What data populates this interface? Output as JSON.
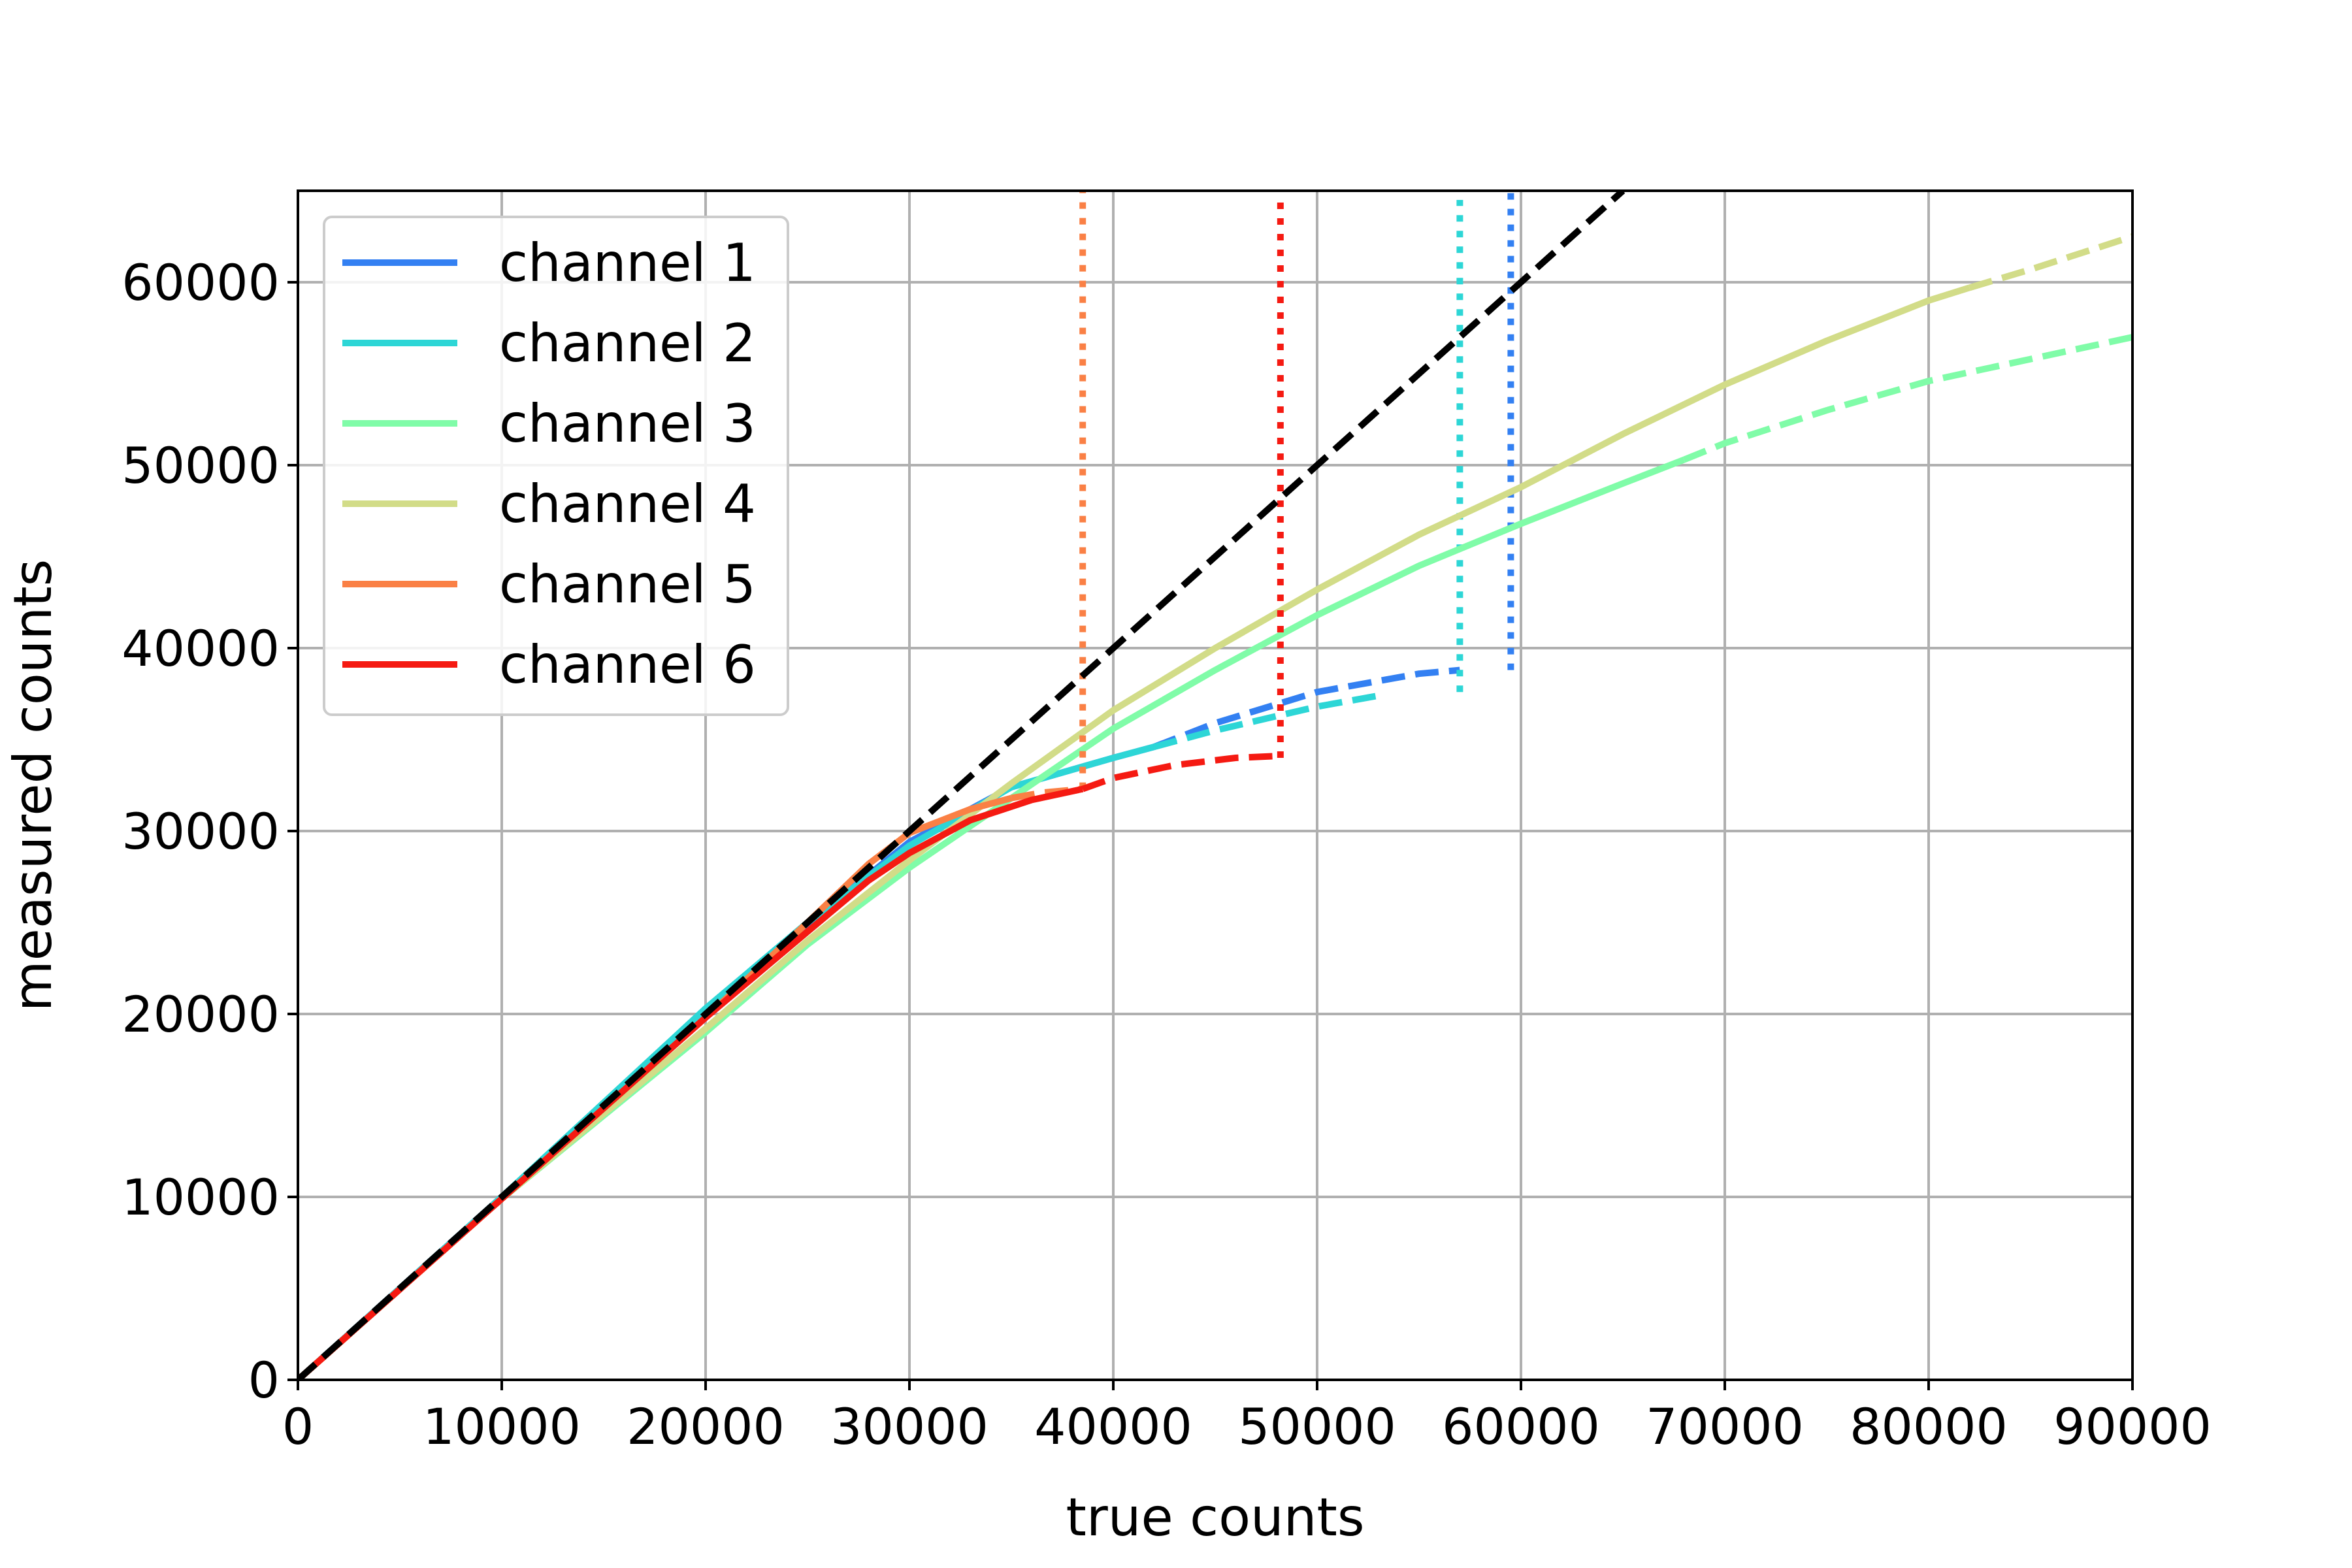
{
  "chart_data": {
    "type": "line",
    "xlabel": "true counts",
    "ylabel": "measured counts",
    "xlim": [
      0,
      90000
    ],
    "ylim": [
      0,
      65000
    ],
    "xticks": [
      0,
      10000,
      20000,
      30000,
      40000,
      50000,
      60000,
      70000,
      80000,
      90000
    ],
    "yticks": [
      0,
      10000,
      20000,
      30000,
      40000,
      50000,
      60000
    ],
    "xtick_labels": [
      "0",
      "10000",
      "20000",
      "30000",
      "40000",
      "50000",
      "60000",
      "70000",
      "80000",
      "90000"
    ],
    "ytick_labels": [
      "0",
      "10000",
      "20000",
      "30000",
      "40000",
      "50000",
      "60000"
    ],
    "grid": true,
    "legend_position": "top-left",
    "identity_line": {
      "style": "dashed",
      "color": "#000000",
      "x": [
        0,
        65000
      ],
      "y": [
        0,
        65000
      ]
    },
    "series": [
      {
        "name": "channel 1",
        "color": "#3380f2",
        "solid": {
          "x": [
            0,
            10000,
            20000,
            25000,
            30000,
            35000,
            40000,
            42000
          ],
          "y": [
            0,
            10000,
            20000,
            24900,
            29400,
            32400,
            34000,
            34600
          ]
        },
        "dashed": {
          "x": [
            42000,
            45000,
            50000,
            55000,
            57000
          ],
          "y": [
            34600,
            35900,
            37600,
            38600,
            38800
          ]
        },
        "limit_x": 59500,
        "limit_y_range": [
          38800,
          65000
        ]
      },
      {
        "name": "channel 2",
        "color": "#2dd6d6",
        "solid": {
          "x": [
            0,
            10000,
            20000,
            25000,
            30000,
            35000,
            40000,
            42000
          ],
          "y": [
            0,
            10000,
            20300,
            25000,
            29200,
            32400,
            34000,
            34600
          ]
        },
        "dashed": {
          "x": [
            42000,
            45000,
            50000,
            53000
          ],
          "y": [
            34600,
            35500,
            36800,
            37400
          ]
        },
        "limit_x": 57000,
        "limit_y_range": [
          37600,
          64500
        ]
      },
      {
        "name": "channel 3",
        "color": "#80fca8",
        "solid": {
          "x": [
            0,
            10000,
            20000,
            25000,
            30000,
            35000,
            40000,
            45000,
            50000,
            55000,
            60000,
            65000,
            68000
          ],
          "y": [
            0,
            9900,
            19000,
            23800,
            28000,
            31800,
            35600,
            38800,
            41800,
            44500,
            46800,
            49000,
            50300
          ]
        },
        "dashed": {
          "x": [
            68000,
            70000,
            75000,
            80000,
            85000,
            90000
          ],
          "y": [
            50300,
            51200,
            53000,
            54600,
            55800,
            57000
          ]
        }
      },
      {
        "name": "channel 4",
        "color": "#d2dc88",
        "solid": {
          "x": [
            0,
            10000,
            20000,
            25000,
            30000,
            35000,
            40000,
            45000,
            50000,
            55000,
            60000,
            65000,
            70000,
            75000,
            80000,
            82000
          ],
          "y": [
            0,
            9900,
            19200,
            24000,
            28400,
            32600,
            36600,
            40000,
            43200,
            46200,
            48800,
            51700,
            54400,
            56800,
            59000,
            59700
          ]
        },
        "dashed": {
          "x": [
            82000,
            85000,
            90000
          ],
          "y": [
            59700,
            60700,
            62500
          ]
        }
      },
      {
        "name": "channel 5",
        "color": "#fa8045",
        "solid": {
          "x": [
            0,
            10000,
            20000,
            25000,
            28000,
            30000,
            33000,
            35000
          ],
          "y": [
            0,
            9900,
            19800,
            25000,
            28200,
            29900,
            31200,
            31800
          ]
        },
        "dashed": {
          "x": [
            35000,
            36500,
            38500
          ],
          "y": [
            31800,
            32100,
            32300
          ]
        },
        "limit_x": 38500,
        "limit_y_range": [
          32300,
          65000
        ]
      },
      {
        "name": "channel 6",
        "color": "#f51a12",
        "solid": {
          "x": [
            0,
            10000,
            20000,
            25000,
            28000,
            30000,
            33000,
            36000,
            38500
          ],
          "y": [
            0,
            9900,
            19800,
            24500,
            27300,
            28800,
            30600,
            31700,
            32300
          ]
        },
        "dashed": {
          "x": [
            38500,
            40000,
            43000,
            46000,
            48000
          ],
          "y": [
            32300,
            32900,
            33600,
            34000,
            34100
          ]
        },
        "limit_x": 48200,
        "limit_y_range": [
          34000,
          64800
        ]
      }
    ]
  }
}
